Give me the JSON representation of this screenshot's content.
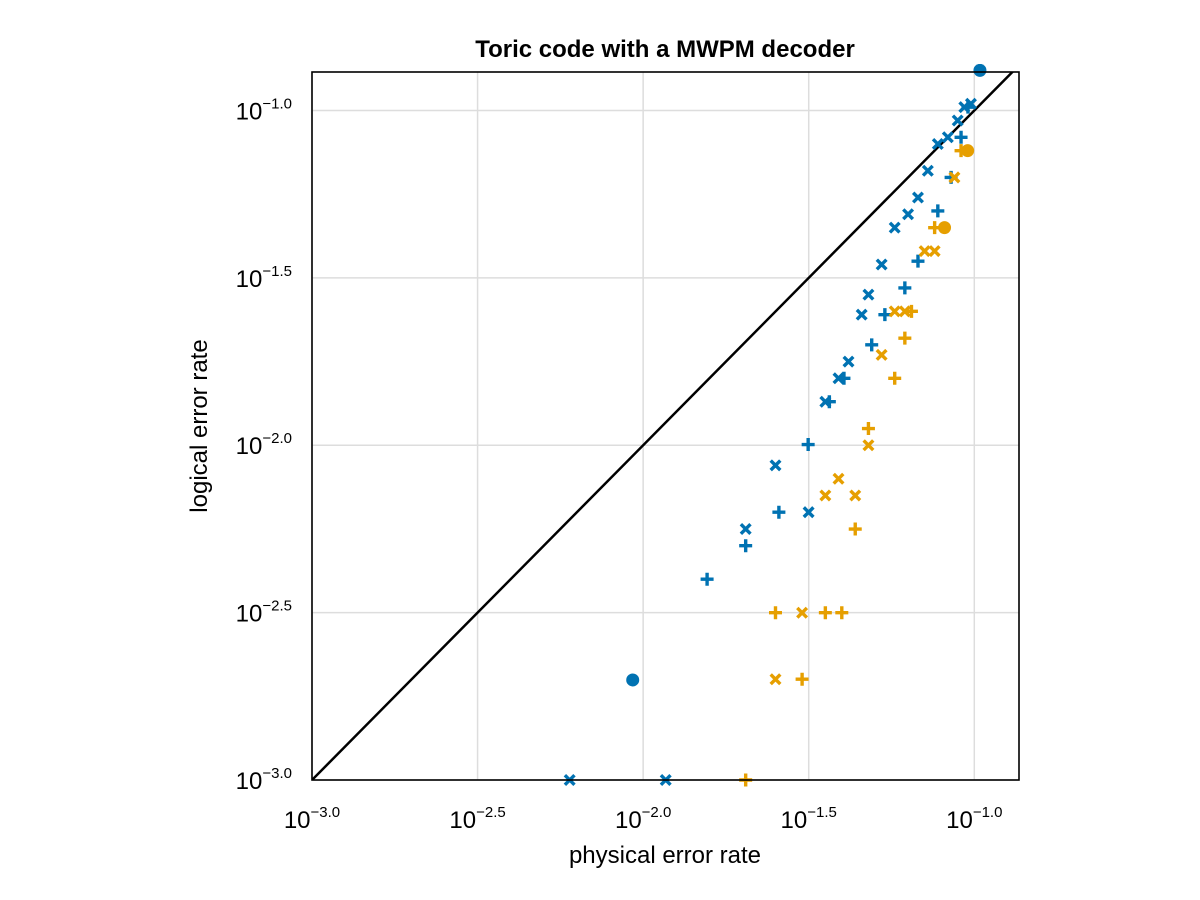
{
  "chart_data": {
    "type": "scatter",
    "title": "Toric code with a MWPM decoder",
    "xlabel": "physical error rate",
    "ylabel": "logical error rate",
    "xscale": "log10",
    "yscale": "log10",
    "xlim_log10": [
      -3.0,
      -0.865
    ],
    "ylim_log10": [
      -3.0,
      -0.885
    ],
    "grid": true,
    "x_ticks": [
      {
        "base": "10",
        "exp": "−3.0",
        "log10": -3.0
      },
      {
        "base": "10",
        "exp": "−2.5",
        "log10": -2.5
      },
      {
        "base": "10",
        "exp": "−2.0",
        "log10": -2.0
      },
      {
        "base": "10",
        "exp": "−1.5",
        "log10": -1.5
      },
      {
        "base": "10",
        "exp": "−1.0",
        "log10": -1.0
      }
    ],
    "y_ticks": [
      {
        "base": "10",
        "exp": "−3.0",
        "log10": -3.0
      },
      {
        "base": "10",
        "exp": "−2.5",
        "log10": -2.5
      },
      {
        "base": "10",
        "exp": "−2.0",
        "log10": -2.0
      },
      {
        "base": "10",
        "exp": "−1.5",
        "log10": -1.5
      },
      {
        "base": "10",
        "exp": "−1.0",
        "log10": -1.0
      }
    ],
    "reference_line": {
      "from_log10": [
        -3.0,
        -3.0
      ],
      "to_log10": [
        -0.865,
        -0.865
      ],
      "color": "#000000"
    },
    "series": [
      {
        "color": "#0072b2",
        "marker": "circle",
        "x": [
          0.0093,
          0.104
        ],
        "y": [
          0.00199,
          0.1318
        ]
      },
      {
        "color": "#0072b2",
        "marker": "cross",
        "x": [
          0.0156,
          0.0204,
          0.0257,
          0.0315,
          0.0365,
          0.0404,
          0.049,
          0.0537,
          0.0617,
          0.0676,
          0.0776,
          0.0851,
          0.0912,
          0.0957
        ],
        "y": [
          0.00398,
          0.00501,
          0.00631,
          0.01005,
          0.01349,
          0.01585,
          0.01995,
          0.02455,
          0.02951,
          0.03548,
          0.05012,
          0.0631,
          0.08318,
          0.10233
        ]
      },
      {
        "color": "#0072b2",
        "marker": "x",
        "x": [
          0.006,
          0.0117,
          0.0204,
          0.0251,
          0.0316,
          0.0355,
          0.0389,
          0.0417,
          0.0457,
          0.0479,
          0.0525,
          0.0575,
          0.0631,
          0.0676,
          0.0724,
          0.0776,
          0.0832,
          0.0891,
          0.0933,
          0.0977
        ],
        "y": [
          0.001,
          0.001,
          0.00562,
          0.00871,
          0.00631,
          0.01349,
          0.01585,
          0.01778,
          0.02455,
          0.02818,
          0.03467,
          0.04467,
          0.04898,
          0.05495,
          0.06607,
          0.07943,
          0.08318,
          0.09333,
          0.10233,
          0.10471
        ]
      },
      {
        "color": "#e69f00",
        "marker": "circle",
        "x": [
          0.0813,
          0.0955
        ],
        "y": [
          0.04467,
          0.07586
        ]
      },
      {
        "color": "#e69f00",
        "marker": "cross",
        "x": [
          0.0204,
          0.0251,
          0.0302,
          0.0355,
          0.0398,
          0.0437,
          0.0479,
          0.0575,
          0.0617,
          0.0646,
          0.0759,
          0.0912
        ],
        "y": [
          0.001,
          0.00316,
          0.002,
          0.00316,
          0.00316,
          0.00562,
          0.01122,
          0.01585,
          0.02089,
          0.02512,
          0.04467,
          0.07586
        ]
      },
      {
        "color": "#e69f00",
        "marker": "x",
        "x": [
          0.0251,
          0.0302,
          0.0355,
          0.0389,
          0.0437,
          0.0479,
          0.0525,
          0.0575,
          0.0617,
          0.0708,
          0.0759,
          0.0871
        ],
        "y": [
          0.002,
          0.00316,
          0.00708,
          0.00794,
          0.00708,
          0.01,
          0.01862,
          0.02512,
          0.02512,
          0.03802,
          0.03802,
          0.0631
        ]
      }
    ]
  }
}
